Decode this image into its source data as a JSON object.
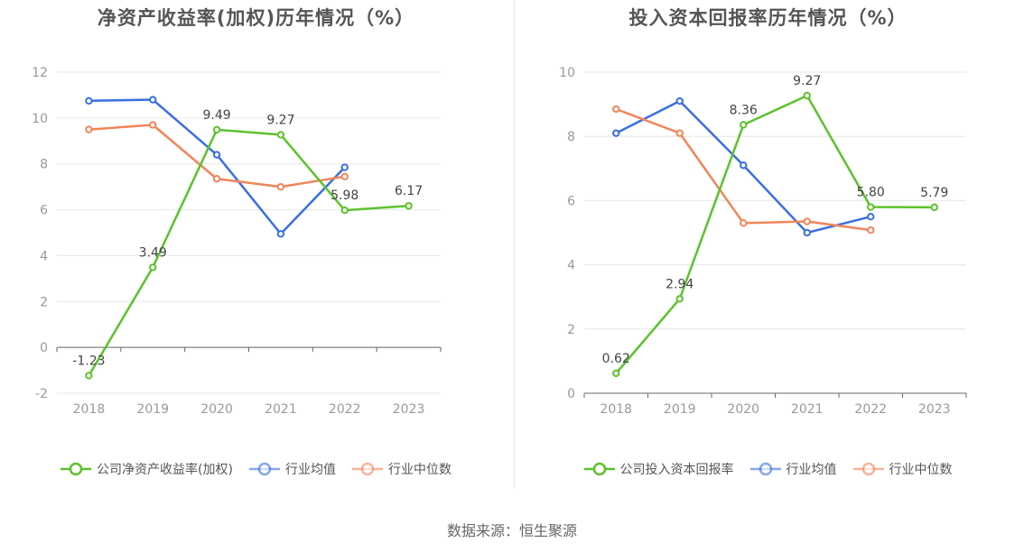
{
  "source": "数据来源：恒生聚源",
  "chart_data": [
    {
      "type": "line",
      "title": "净资产收益率(加权)历年情况（%）",
      "categories": [
        "2018",
        "2019",
        "2020",
        "2021",
        "2022",
        "2023"
      ],
      "ylim": [
        -2,
        12
      ],
      "yticks": [
        -2,
        0,
        2,
        4,
        6,
        8,
        10,
        12
      ],
      "grid": true,
      "legend_position": "bottom",
      "series": [
        {
          "name": "公司净资产收益率(加权)",
          "color": "#5cc22c",
          "values": [
            -1.23,
            3.49,
            9.49,
            9.27,
            5.98,
            6.17
          ],
          "labels": [
            "-1.23",
            "3.49",
            "9.49",
            "9.27",
            "5.98",
            "6.17"
          ]
        },
        {
          "name": "行业均值",
          "color": "#3a6fe0",
          "values": [
            10.75,
            10.8,
            8.4,
            4.95,
            7.85,
            null
          ]
        },
        {
          "name": "行业中位数",
          "color": "#f0855a",
          "values": [
            9.5,
            9.7,
            7.35,
            7.0,
            7.45,
            null
          ]
        }
      ]
    },
    {
      "type": "line",
      "title": "投入资本回报率历年情况（%）",
      "categories": [
        "2018",
        "2019",
        "2020",
        "2021",
        "2022",
        "2023"
      ],
      "ylim": [
        0,
        10
      ],
      "yticks": [
        0,
        2,
        4,
        6,
        8,
        10
      ],
      "grid": true,
      "legend_position": "bottom",
      "series": [
        {
          "name": "公司投入资本回报率",
          "color": "#5cc22c",
          "values": [
            0.62,
            2.94,
            8.36,
            9.27,
            5.8,
            5.79
          ],
          "labels": [
            "0.62",
            "2.94",
            "8.36",
            "9.27",
            "5.80",
            "5.79"
          ]
        },
        {
          "name": "行业均值",
          "color": "#3a6fe0",
          "values": [
            8.1,
            9.1,
            7.1,
            5.0,
            5.5,
            null
          ]
        },
        {
          "name": "行业中位数",
          "color": "#f0855a",
          "values": [
            8.85,
            8.1,
            5.3,
            5.35,
            5.08,
            null
          ]
        }
      ]
    }
  ]
}
